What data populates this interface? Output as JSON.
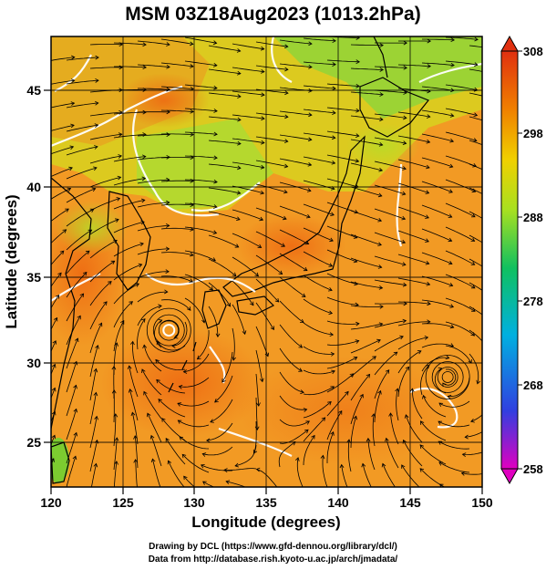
{
  "title": "MSM 03Z18Aug2023 (1013.2hPa)",
  "map": {
    "xlabel": "Longitude (degrees)",
    "ylabel": "Latitude  (degrees)",
    "xlim": [
      120,
      150
    ],
    "ylim": [
      22.5,
      47.5
    ],
    "x_ticks": [
      "120",
      "125",
      "130",
      "135",
      "140",
      "145",
      "150"
    ],
    "y_ticks": [
      "25",
      "30",
      "35",
      "40",
      "45"
    ],
    "grid": true,
    "field": "temperature (K)",
    "overlay": "streamlines",
    "vortices": [
      {
        "name": "cyclone-west",
        "lon": 128.2,
        "lat": 31.2
      },
      {
        "name": "cyclone-east",
        "lon": 147.6,
        "lat": 28.6
      }
    ]
  },
  "colorbar": {
    "ticks": [
      "308",
      "298",
      "288",
      "278",
      "268",
      "258"
    ],
    "min": 258,
    "max": 308,
    "colors": [
      "#e000c0",
      "#3040e0",
      "#00b0e0",
      "#10c060",
      "#a8e020",
      "#f0d000",
      "#f08000",
      "#e03010"
    ]
  },
  "credits": {
    "line1": "Drawing by DCL (https://www.gfd-dennou.org/library/dcl/)",
    "line2": "Data from http://database.rish.kyoto-u.ac.jp/arch/jmadata/"
  }
}
